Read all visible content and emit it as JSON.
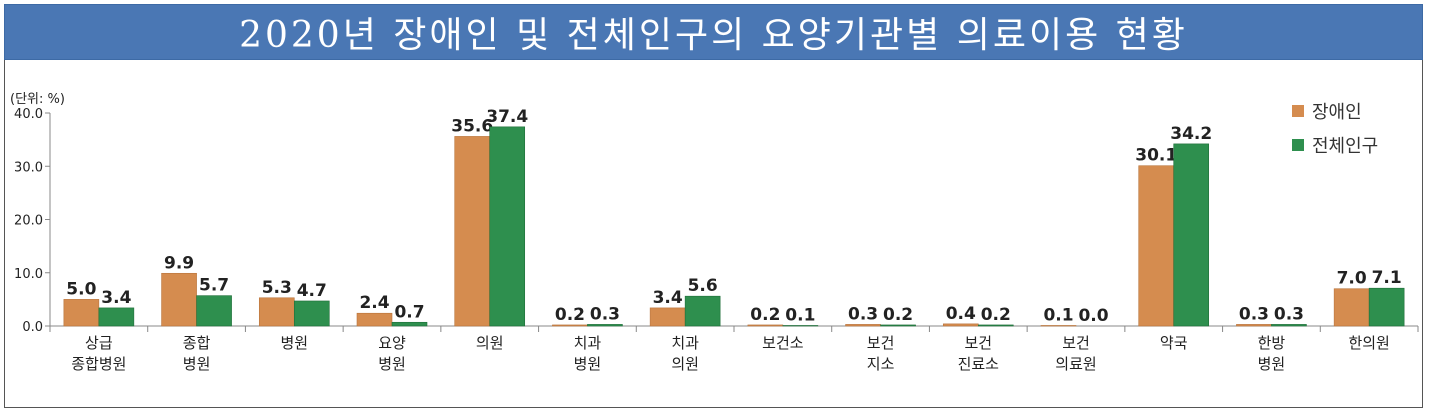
{
  "title": "2020년 장애인 및 전체인구의 요양기관별 의료이용 현황",
  "unit_label": "(단위: %)",
  "colors": {
    "disabled": "#d58c4f",
    "total": "#2e8f4e",
    "title_bg": "#4a77b4"
  },
  "chart_data": {
    "type": "bar",
    "title": "2020년 장애인 및 전체인구의 요양기관별 의료이용 현황",
    "ylabel": "(단위: %)",
    "ylim": [
      0,
      40
    ],
    "yticks": [
      "0.0",
      "10.0",
      "20.0",
      "30.0",
      "40.0"
    ],
    "ytick_values": [
      0,
      10,
      20,
      30,
      40
    ],
    "categories": [
      [
        "상급",
        "종합병원"
      ],
      [
        "종합",
        "병원"
      ],
      [
        "병원"
      ],
      [
        "요양",
        "병원"
      ],
      [
        "의원"
      ],
      [
        "치과",
        "병원"
      ],
      [
        "치과",
        "의원"
      ],
      [
        "보건소"
      ],
      [
        "보건",
        "지소"
      ],
      [
        "보건",
        "진료소"
      ],
      [
        "보건",
        "의료원"
      ],
      [
        "약국"
      ],
      [
        "한방",
        "병원"
      ],
      [
        "한의원"
      ]
    ],
    "series": [
      {
        "name": "장애인",
        "color": "#d58c4f",
        "values": [
          5.0,
          9.9,
          5.3,
          2.4,
          35.6,
          0.2,
          3.4,
          0.2,
          0.3,
          0.4,
          0.1,
          30.1,
          0.3,
          7.0
        ],
        "labels": [
          "5.0",
          "9.9",
          "5.3",
          "2.4",
          "35.6",
          "0.2",
          "3.4",
          "0.2",
          "0.3",
          "0.4",
          "0.1",
          "30.1",
          "0.3",
          "7.0"
        ]
      },
      {
        "name": "전체인구",
        "color": "#2e8f4e",
        "values": [
          3.4,
          5.7,
          4.7,
          0.7,
          37.4,
          0.3,
          5.6,
          0.1,
          0.2,
          0.2,
          0.0,
          34.2,
          0.3,
          7.1
        ],
        "labels": [
          "3.4",
          "5.7",
          "4.7",
          "0.7",
          "37.4",
          "0.3",
          "5.6",
          "0.1",
          "0.2",
          "0.2",
          "0.0",
          "34.2",
          "0.3",
          "7.1"
        ]
      }
    ],
    "legend_position": "top-right",
    "grid": false
  }
}
